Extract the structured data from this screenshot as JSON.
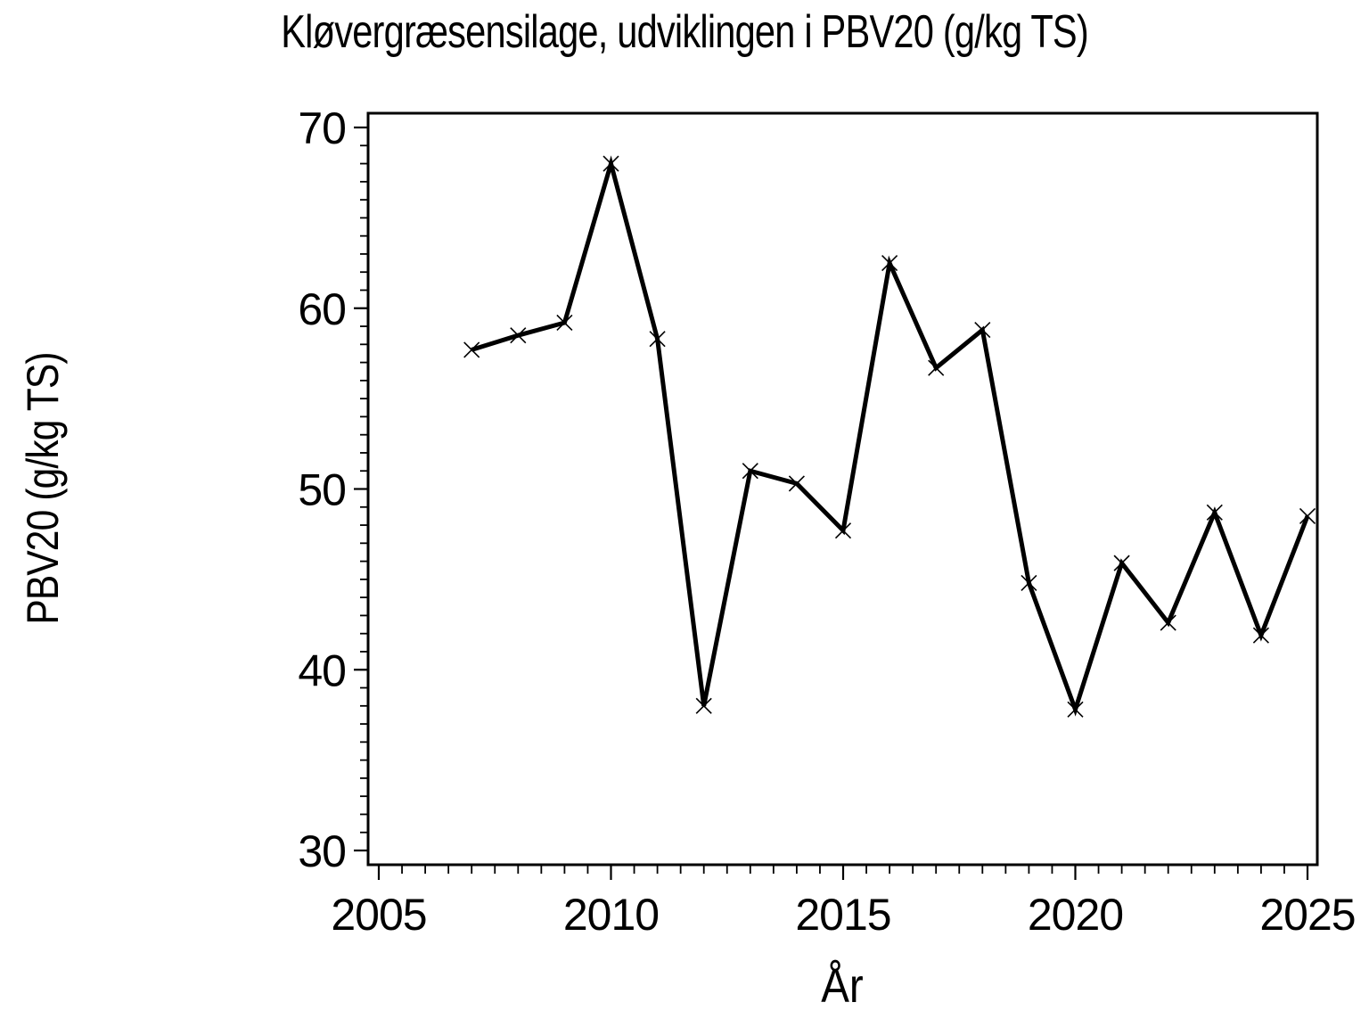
{
  "chart_data": {
    "type": "line",
    "title": "Kløvergræsensilage, udviklingen i PBV20 (g/kg TS)",
    "xlabel": "År",
    "ylabel": "PBV20 (g/kg TS)",
    "xlim": [
      2005,
      2025
    ],
    "ylim": [
      30,
      70
    ],
    "x_major_ticks": [
      2005,
      2010,
      2015,
      2020,
      2025
    ],
    "x_tick_labels": [
      "2005",
      "2010",
      "2015",
      "2020",
      "2025"
    ],
    "x_minor_tick_step": 0.5,
    "y_major_ticks": [
      30,
      40,
      50,
      60,
      70
    ],
    "y_tick_labels": [
      "30",
      "40",
      "50",
      "60",
      "70"
    ],
    "y_minor_tick_step": 1,
    "grid": false,
    "legend": false,
    "marker": "x",
    "colors": {
      "background": "#ffffff",
      "line": "#000000",
      "text": "#000000"
    },
    "series": [
      {
        "name": "PBV20",
        "x": [
          2007,
          2008,
          2009,
          2010,
          2011,
          2012,
          2013,
          2014,
          2015,
          2016,
          2017,
          2018,
          2019,
          2020,
          2021,
          2022,
          2023,
          2024,
          2025
        ],
        "values": [
          57.7,
          58.5,
          59.2,
          68.0,
          58.3,
          38.0,
          51.0,
          50.3,
          47.7,
          62.5,
          56.7,
          58.8,
          44.8,
          37.8,
          45.9,
          42.6,
          48.7,
          41.9,
          48.5
        ]
      }
    ]
  }
}
